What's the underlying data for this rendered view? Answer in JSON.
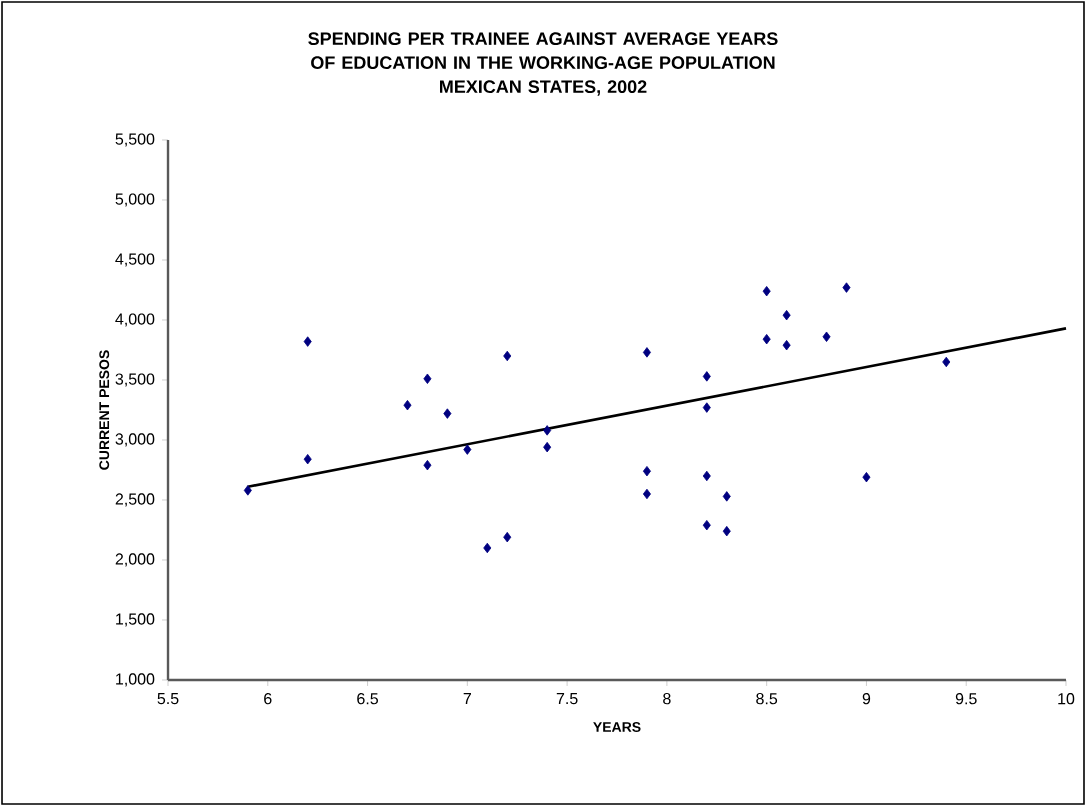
{
  "chart_data": {
    "type": "scatter",
    "title": "SPENDING PER TRAINEE AGAINST AVERAGE YEARS OF EDUCATION IN THE WORKING-AGE POPULATION",
    "subtitle": "MEXICAN STATES, 2002",
    "xlabel": "YEARS",
    "ylabel": "CURRENT PESOS",
    "marker": "diamond",
    "legend": false,
    "grid": false,
    "xlim": [
      5.5,
      10
    ],
    "ylim": [
      1000,
      5500
    ],
    "xticks": [
      5.5,
      6,
      6.5,
      7,
      7.5,
      8,
      8.5,
      9,
      9.5,
      10
    ],
    "yticks": [
      {
        "value": 1000,
        "label": "1,000"
      },
      {
        "value": 1500,
        "label": "1,500"
      },
      {
        "value": 2000,
        "label": "2,000"
      },
      {
        "value": 2500,
        "label": "2,500"
      },
      {
        "value": 3000,
        "label": "3,000"
      },
      {
        "value": 3500,
        "label": "3,500"
      },
      {
        "value": 4000,
        "label": "4,000"
      },
      {
        "value": 4500,
        "label": "4,500"
      },
      {
        "value": 5000,
        "label": "5,000"
      },
      {
        "value": 5500,
        "label": "5,500"
      }
    ],
    "series": [
      {
        "color": "#000080",
        "x": [
          5.9,
          6.2,
          6.2,
          6.7,
          6.8,
          6.8,
          6.9,
          7.0,
          7.1,
          7.2,
          7.2,
          7.4,
          7.4,
          7.9,
          7.9,
          7.9,
          8.2,
          8.2,
          8.2,
          8.2,
          8.3,
          8.3,
          8.5,
          8.5,
          8.6,
          8.6,
          8.8,
          8.9,
          9.0,
          9.4
        ],
        "values": [
          2580,
          3820,
          2840,
          3290,
          3510,
          2790,
          3220,
          2920,
          2100,
          3700,
          2190,
          3080,
          2940,
          3730,
          2740,
          2550,
          3530,
          3270,
          2700,
          2290,
          2530,
          2240,
          4240,
          3840,
          4040,
          3790,
          3860,
          4270,
          2690,
          3650
        ]
      },
      {
        "type": "line",
        "color": "#000000",
        "marker": "none",
        "line_style": "solid",
        "x": [
          5.9,
          10
        ],
        "values": [
          2610,
          3930
        ]
      }
    ]
  }
}
